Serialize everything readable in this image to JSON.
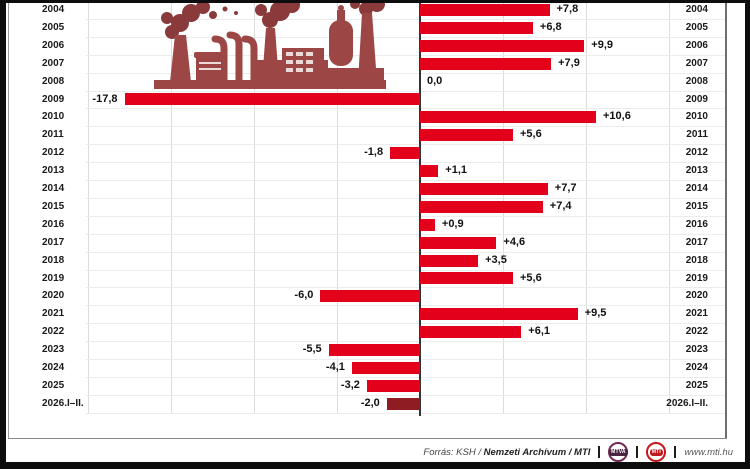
{
  "chart_data": {
    "type": "bar",
    "orientation": "horizontal",
    "title": "",
    "categories": [
      "2004",
      "2005",
      "2006",
      "2007",
      "2008",
      "2009",
      "2010",
      "2011",
      "2012",
      "2013",
      "2014",
      "2015",
      "2016",
      "2017",
      "2018",
      "2019",
      "2020",
      "2021",
      "2022",
      "2023",
      "2024",
      "2025",
      "2026.I–II."
    ],
    "values": [
      7.8,
      6.8,
      9.9,
      7.9,
      0.0,
      -17.8,
      10.6,
      5.6,
      -1.8,
      1.1,
      7.7,
      7.4,
      0.9,
      4.6,
      3.5,
      5.6,
      -6.0,
      9.5,
      6.1,
      -5.5,
      -4.1,
      -3.2,
      -2.0
    ],
    "value_labels": [
      "+7,8",
      "+6,8",
      "+9,9",
      "+7,9",
      "0,0",
      "-17,8",
      "+10,6",
      "+5,6",
      "-1,8",
      "+1,1",
      "+7,7",
      "+7,4",
      "+0,9",
      "+4,6",
      "+3,5",
      "+5,6",
      "-6,0",
      "+9,5",
      "+6,1",
      "-5,5",
      "-4,1",
      "-3,2",
      "-2,0"
    ],
    "xlim": [
      -20,
      15
    ],
    "gridline_step": 5,
    "grid": true,
    "legend": "none",
    "year_labels_on_both_sides": true,
    "highlight_last_bar": true
  },
  "colors": {
    "bar": "#e2001a",
    "bar_highlight": "#8e1c22",
    "axis": "#333333",
    "gridline": "#dcdcdc",
    "row_line": "#ececec",
    "factory_main": "#9c4646",
    "factory_dark": "#8a3a3a"
  },
  "footer": {
    "source_normal": "Forrás: KSH /",
    "source_bold": "Nemzeti Archívum",
    "source_tail": "/ MTI",
    "logo_mtva": "MTVA",
    "logo_mti": "MTI",
    "website": "www.mti.hu"
  }
}
